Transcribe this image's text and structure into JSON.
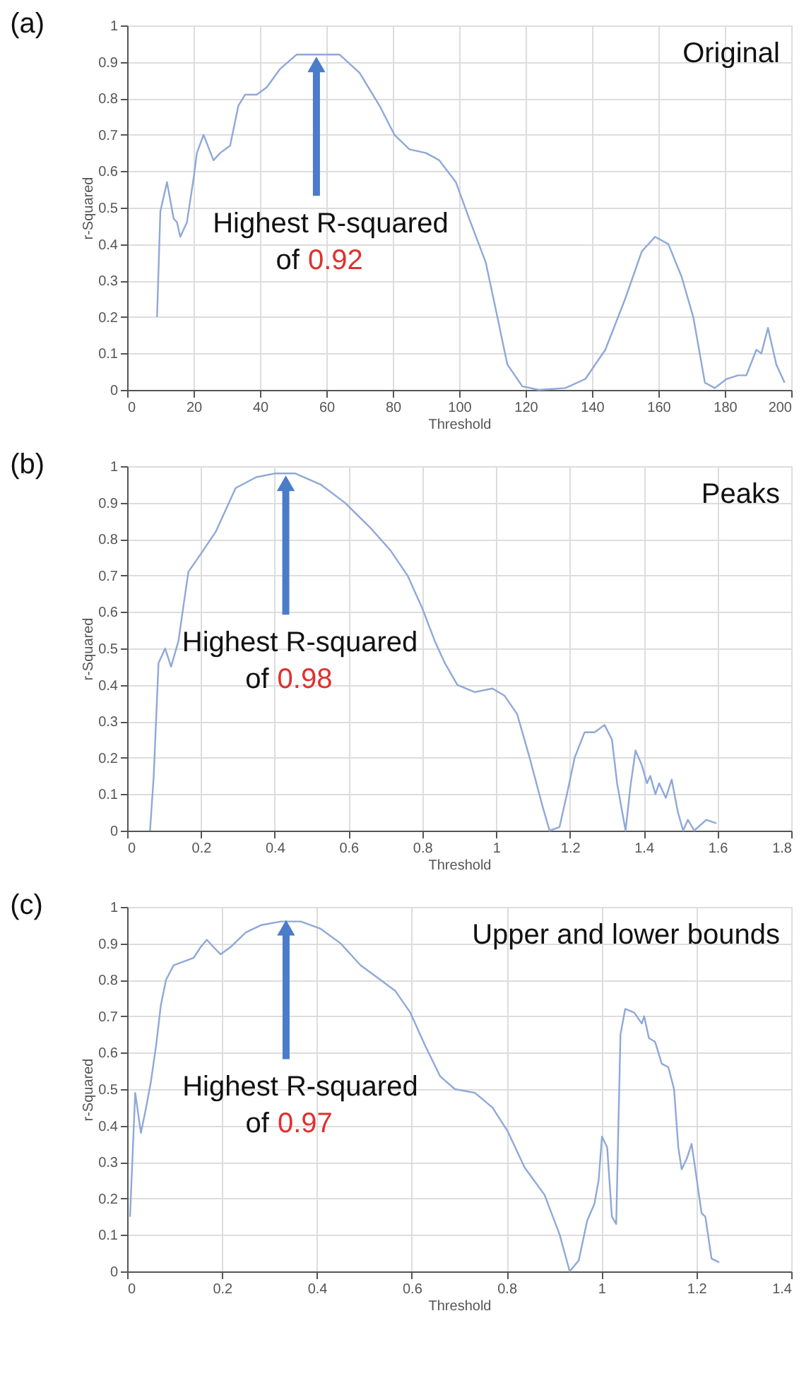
{
  "chart_data": [
    {
      "type": "line",
      "title": "(a)",
      "xlabel": "Threshold",
      "ylabel": "r-Squared",
      "xlim": [
        0,
        200
      ],
      "xticks": [
        0,
        20,
        40,
        60,
        80,
        100,
        120,
        140,
        160,
        180,
        200
      ],
      "ylim": [
        0,
        1
      ],
      "yticks": [
        0,
        0.1,
        0.2,
        0.3,
        0.4,
        0.5,
        0.6,
        0.7,
        0.8,
        0.9,
        1
      ],
      "grid": true,
      "line_style": "solid",
      "annotations": [
        "Original",
        {
          "text": "Highest R-squared of 0.92",
          "x": 57,
          "y": 0.92
        }
      ],
      "series": [
        {
          "color": "#8fa8d8",
          "x": [
            9,
            10,
            12,
            14,
            15,
            16,
            18,
            20,
            21,
            23,
            26,
            28,
            31,
            33.5,
            35.5,
            39,
            42,
            46,
            51,
            57,
            64,
            70,
            76,
            80.5,
            85,
            90,
            94,
            99,
            103,
            108,
            111.5,
            114.5,
            119,
            124,
            132,
            138,
            144,
            150,
            155,
            159,
            163,
            167,
            170.5,
            174,
            177,
            180.5,
            184,
            186.5,
            189.5,
            191,
            193,
            195.5,
            198
          ],
          "values": [
            0.2,
            0.49,
            0.57,
            0.47,
            0.46,
            0.42,
            0.46,
            0.58,
            0.65,
            0.7,
            0.63,
            0.65,
            0.67,
            0.78,
            0.81,
            0.81,
            0.83,
            0.88,
            0.92,
            0.92,
            0.92,
            0.87,
            0.78,
            0.7,
            0.66,
            0.65,
            0.63,
            0.57,
            0.47,
            0.35,
            0.2,
            0.07,
            0.01,
            0,
            0.005,
            0.03,
            0.11,
            0.25,
            0.38,
            0.42,
            0.4,
            0.31,
            0.2,
            0.02,
            0.005,
            0.03,
            0.04,
            0.04,
            0.11,
            0.1,
            0.17,
            0.07,
            0.02
          ]
        }
      ]
    },
    {
      "type": "line",
      "title": "(b)",
      "xlabel": "Threshold",
      "ylabel": "r-Squared",
      "xlim": [
        0,
        1.8
      ],
      "xticks": [
        0,
        0.2,
        0.4,
        0.6,
        0.8,
        1,
        1.2,
        1.4,
        1.6,
        1.8
      ],
      "ylim": [
        0,
        1
      ],
      "yticks": [
        0,
        0.1,
        0.2,
        0.3,
        0.4,
        0.5,
        0.6,
        0.7,
        0.8,
        0.9,
        1
      ],
      "grid": true,
      "line_style": "solid",
      "annotations": [
        "Peaks",
        {
          "text": "Highest R-squared of 0.98",
          "x": 0.43,
          "y": 0.98
        }
      ],
      "series": [
        {
          "color": "#8fa8d8",
          "x": [
            0.062,
            0.072,
            0.085,
            0.103,
            0.119,
            0.139,
            0.153,
            0.166,
            0.2,
            0.24,
            0.294,
            0.35,
            0.4,
            0.456,
            0.524,
            0.59,
            0.66,
            0.713,
            0.76,
            0.8,
            0.834,
            0.861,
            0.895,
            0.942,
            0.99,
            1.023,
            1.057,
            1.091,
            1.125,
            1.145,
            1.172,
            1.192,
            1.213,
            1.24,
            1.267,
            1.294,
            1.314,
            1.328,
            1.351,
            1.364,
            1.378,
            1.395,
            1.409,
            1.418,
            1.432,
            1.442,
            1.46,
            1.476,
            1.493,
            1.507,
            1.52,
            1.537,
            1.57,
            1.597
          ],
          "values": [
            0,
            0.15,
            0.46,
            0.5,
            0.45,
            0.52,
            0.62,
            0.71,
            0.76,
            0.82,
            0.94,
            0.97,
            0.98,
            0.98,
            0.95,
            0.9,
            0.83,
            0.77,
            0.7,
            0.61,
            0.52,
            0.46,
            0.4,
            0.38,
            0.39,
            0.37,
            0.32,
            0.2,
            0.07,
            0,
            0.01,
            0.1,
            0.2,
            0.27,
            0.27,
            0.29,
            0.25,
            0.13,
            0,
            0.12,
            0.22,
            0.18,
            0.13,
            0.15,
            0.1,
            0.13,
            0.09,
            0.14,
            0.05,
            0,
            0.03,
            0,
            0.03,
            0.02
          ]
        }
      ]
    },
    {
      "type": "line",
      "title": "(c)",
      "xlabel": "Threshold",
      "ylabel": "r-Squared",
      "xlim": [
        0,
        1.4
      ],
      "xticks": [
        0,
        0.2,
        0.4,
        0.6,
        0.8,
        1,
        1.2,
        1.4
      ],
      "ylim": [
        0,
        1
      ],
      "yticks": [
        0,
        0.1,
        0.2,
        0.3,
        0.4,
        0.5,
        0.6,
        0.7,
        0.8,
        0.9,
        1
      ],
      "grid": true,
      "line_style": "solid",
      "annotations": [
        "Upper and lower bounds",
        {
          "text": "Highest R-squared of 0.97",
          "x": 0.335,
          "y": 0.97
        }
      ],
      "series": [
        {
          "color": "#8fa8d8",
          "x": [
            0.006,
            0.017,
            0.029,
            0.04,
            0.05,
            0.061,
            0.071,
            0.082,
            0.098,
            0.119,
            0.14,
            0.155,
            0.168,
            0.182,
            0.197,
            0.218,
            0.25,
            0.282,
            0.324,
            0.366,
            0.408,
            0.45,
            0.492,
            0.534,
            0.565,
            0.597,
            0.628,
            0.66,
            0.691,
            0.733,
            0.77,
            0.802,
            0.838,
            0.88,
            0.912,
            0.933,
            0.952,
            0.97,
            0.985,
            0.994,
            1.001,
            1.012,
            1.022,
            1.031,
            1.04,
            1.05,
            1.069,
            1.085,
            1.09,
            1.1,
            1.113,
            1.127,
            1.141,
            1.153,
            1.162,
            1.169,
            1.18,
            1.19,
            1.2,
            1.211,
            1.219,
            1.232,
            1.248
          ],
          "values": [
            0.15,
            0.49,
            0.38,
            0.45,
            0.52,
            0.62,
            0.73,
            0.8,
            0.84,
            0.85,
            0.86,
            0.89,
            0.91,
            0.89,
            0.87,
            0.89,
            0.93,
            0.95,
            0.96,
            0.96,
            0.94,
            0.9,
            0.84,
            0.8,
            0.77,
            0.71,
            0.62,
            0.535,
            0.5,
            0.49,
            0.45,
            0.385,
            0.285,
            0.21,
            0.1,
            0,
            0.03,
            0.14,
            0.185,
            0.25,
            0.37,
            0.34,
            0.15,
            0.13,
            0.65,
            0.72,
            0.71,
            0.68,
            0.7,
            0.64,
            0.63,
            0.57,
            0.56,
            0.5,
            0.34,
            0.28,
            0.31,
            0.35,
            0.26,
            0.16,
            0.15,
            0.035,
            0.025
          ]
        }
      ]
    }
  ]
}
